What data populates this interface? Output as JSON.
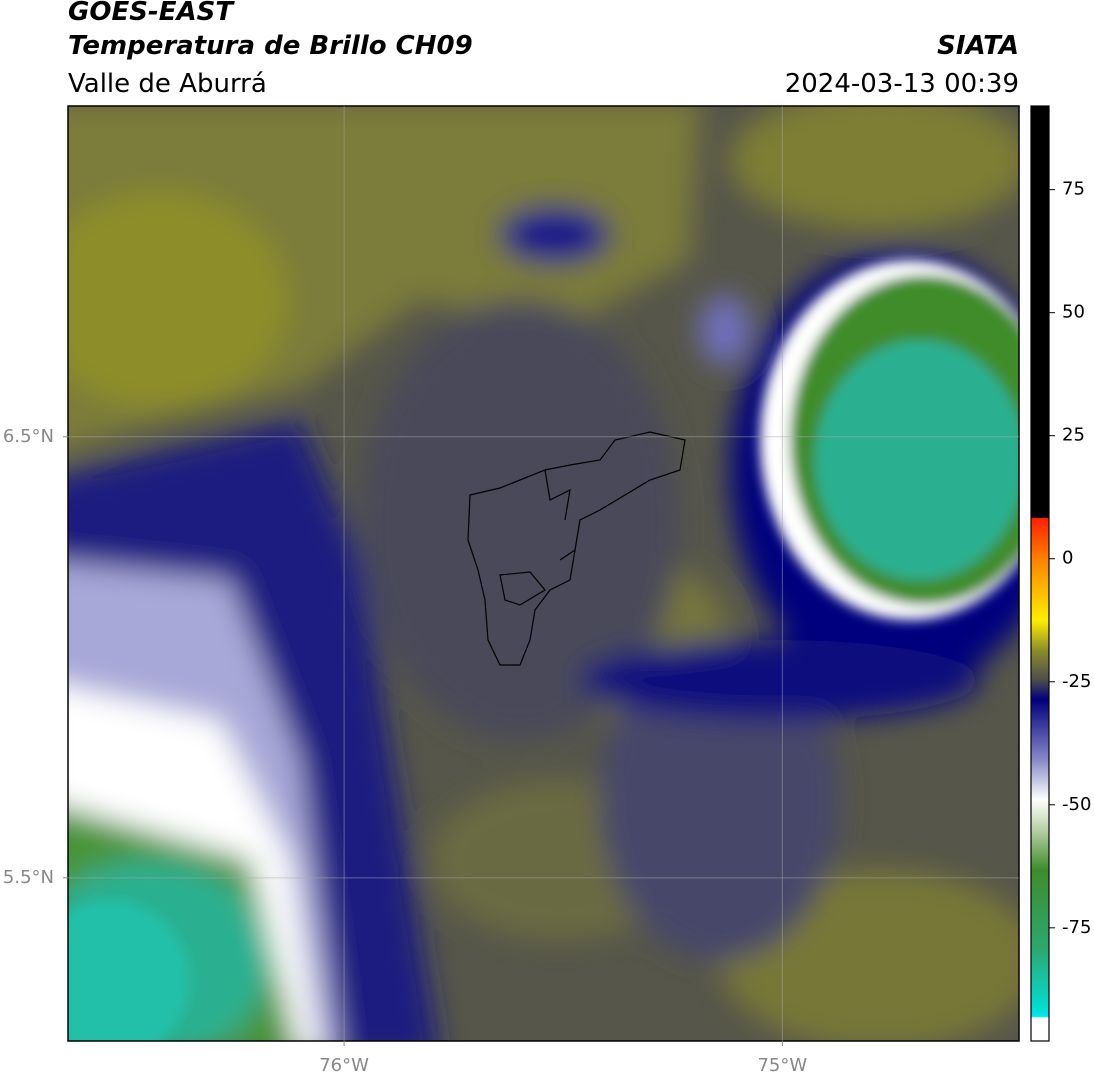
{
  "header": {
    "title": "GOES-EAST",
    "subtitle": "Temperatura de Brillo CH09",
    "source": "SIATA",
    "region": "Valle de Aburrá",
    "datetime": "2024-03-13 00:39"
  },
  "map": {
    "xlim": [
      -76.63,
      -74.46
    ],
    "ylim": [
      5.13,
      7.25
    ],
    "xticks": [
      {
        "value": -76,
        "label": "76°W"
      },
      {
        "value": -75,
        "label": "75°W"
      }
    ],
    "yticks": [
      {
        "value": 6.5,
        "label": "6.5°N"
      },
      {
        "value": 5.5,
        "label": "5.5°N"
      }
    ]
  },
  "colorbar": {
    "clim": [
      -98,
      92
    ],
    "ticks": [
      75,
      50,
      25,
      0,
      -25,
      -50,
      -75
    ]
  }
}
